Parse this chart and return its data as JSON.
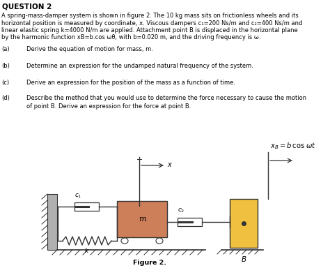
{
  "title": "QUESTION 2",
  "para_line1": "A spring-mass-damper system is shown in figure 2. The 10 kg mass sits on frictionless wheels and its",
  "para_line2": "horizontal position is measured by coordinate, x. Viscous dampers c₁=200 Ns/m and c₂=400 Ns/m and",
  "para_line3": "linear elastic spring k=4000 N/m are applied. Attachment point B is displaced in the horizontal plane",
  "para_line4": "by the harmonic function xB=b.cos ωθ, with b=0.020 m, and the driving frequency is ω.",
  "parts": [
    {
      "label": "(a)",
      "text": "Derive the equation of motion for mass, m."
    },
    {
      "label": "(b)",
      "text": "Determine an expression for the undamped natural frequency of the system."
    },
    {
      "label": "(c)",
      "text": "Derive an expression for the position of the mass as a function of time."
    },
    {
      "label": "(d)",
      "text": "Describe the method that you would use to determine the force necessary to cause the motion\nof point B. Derive an expression for the force at point B."
    }
  ],
  "figure_label": "Figure 2.",
  "bg_color": "#ffffff",
  "mass_color": "#cd7f5a",
  "B_block_color": "#f0c040",
  "wall_color": "#b0b0b0",
  "text_color": "#000000",
  "line_color": "#333333"
}
